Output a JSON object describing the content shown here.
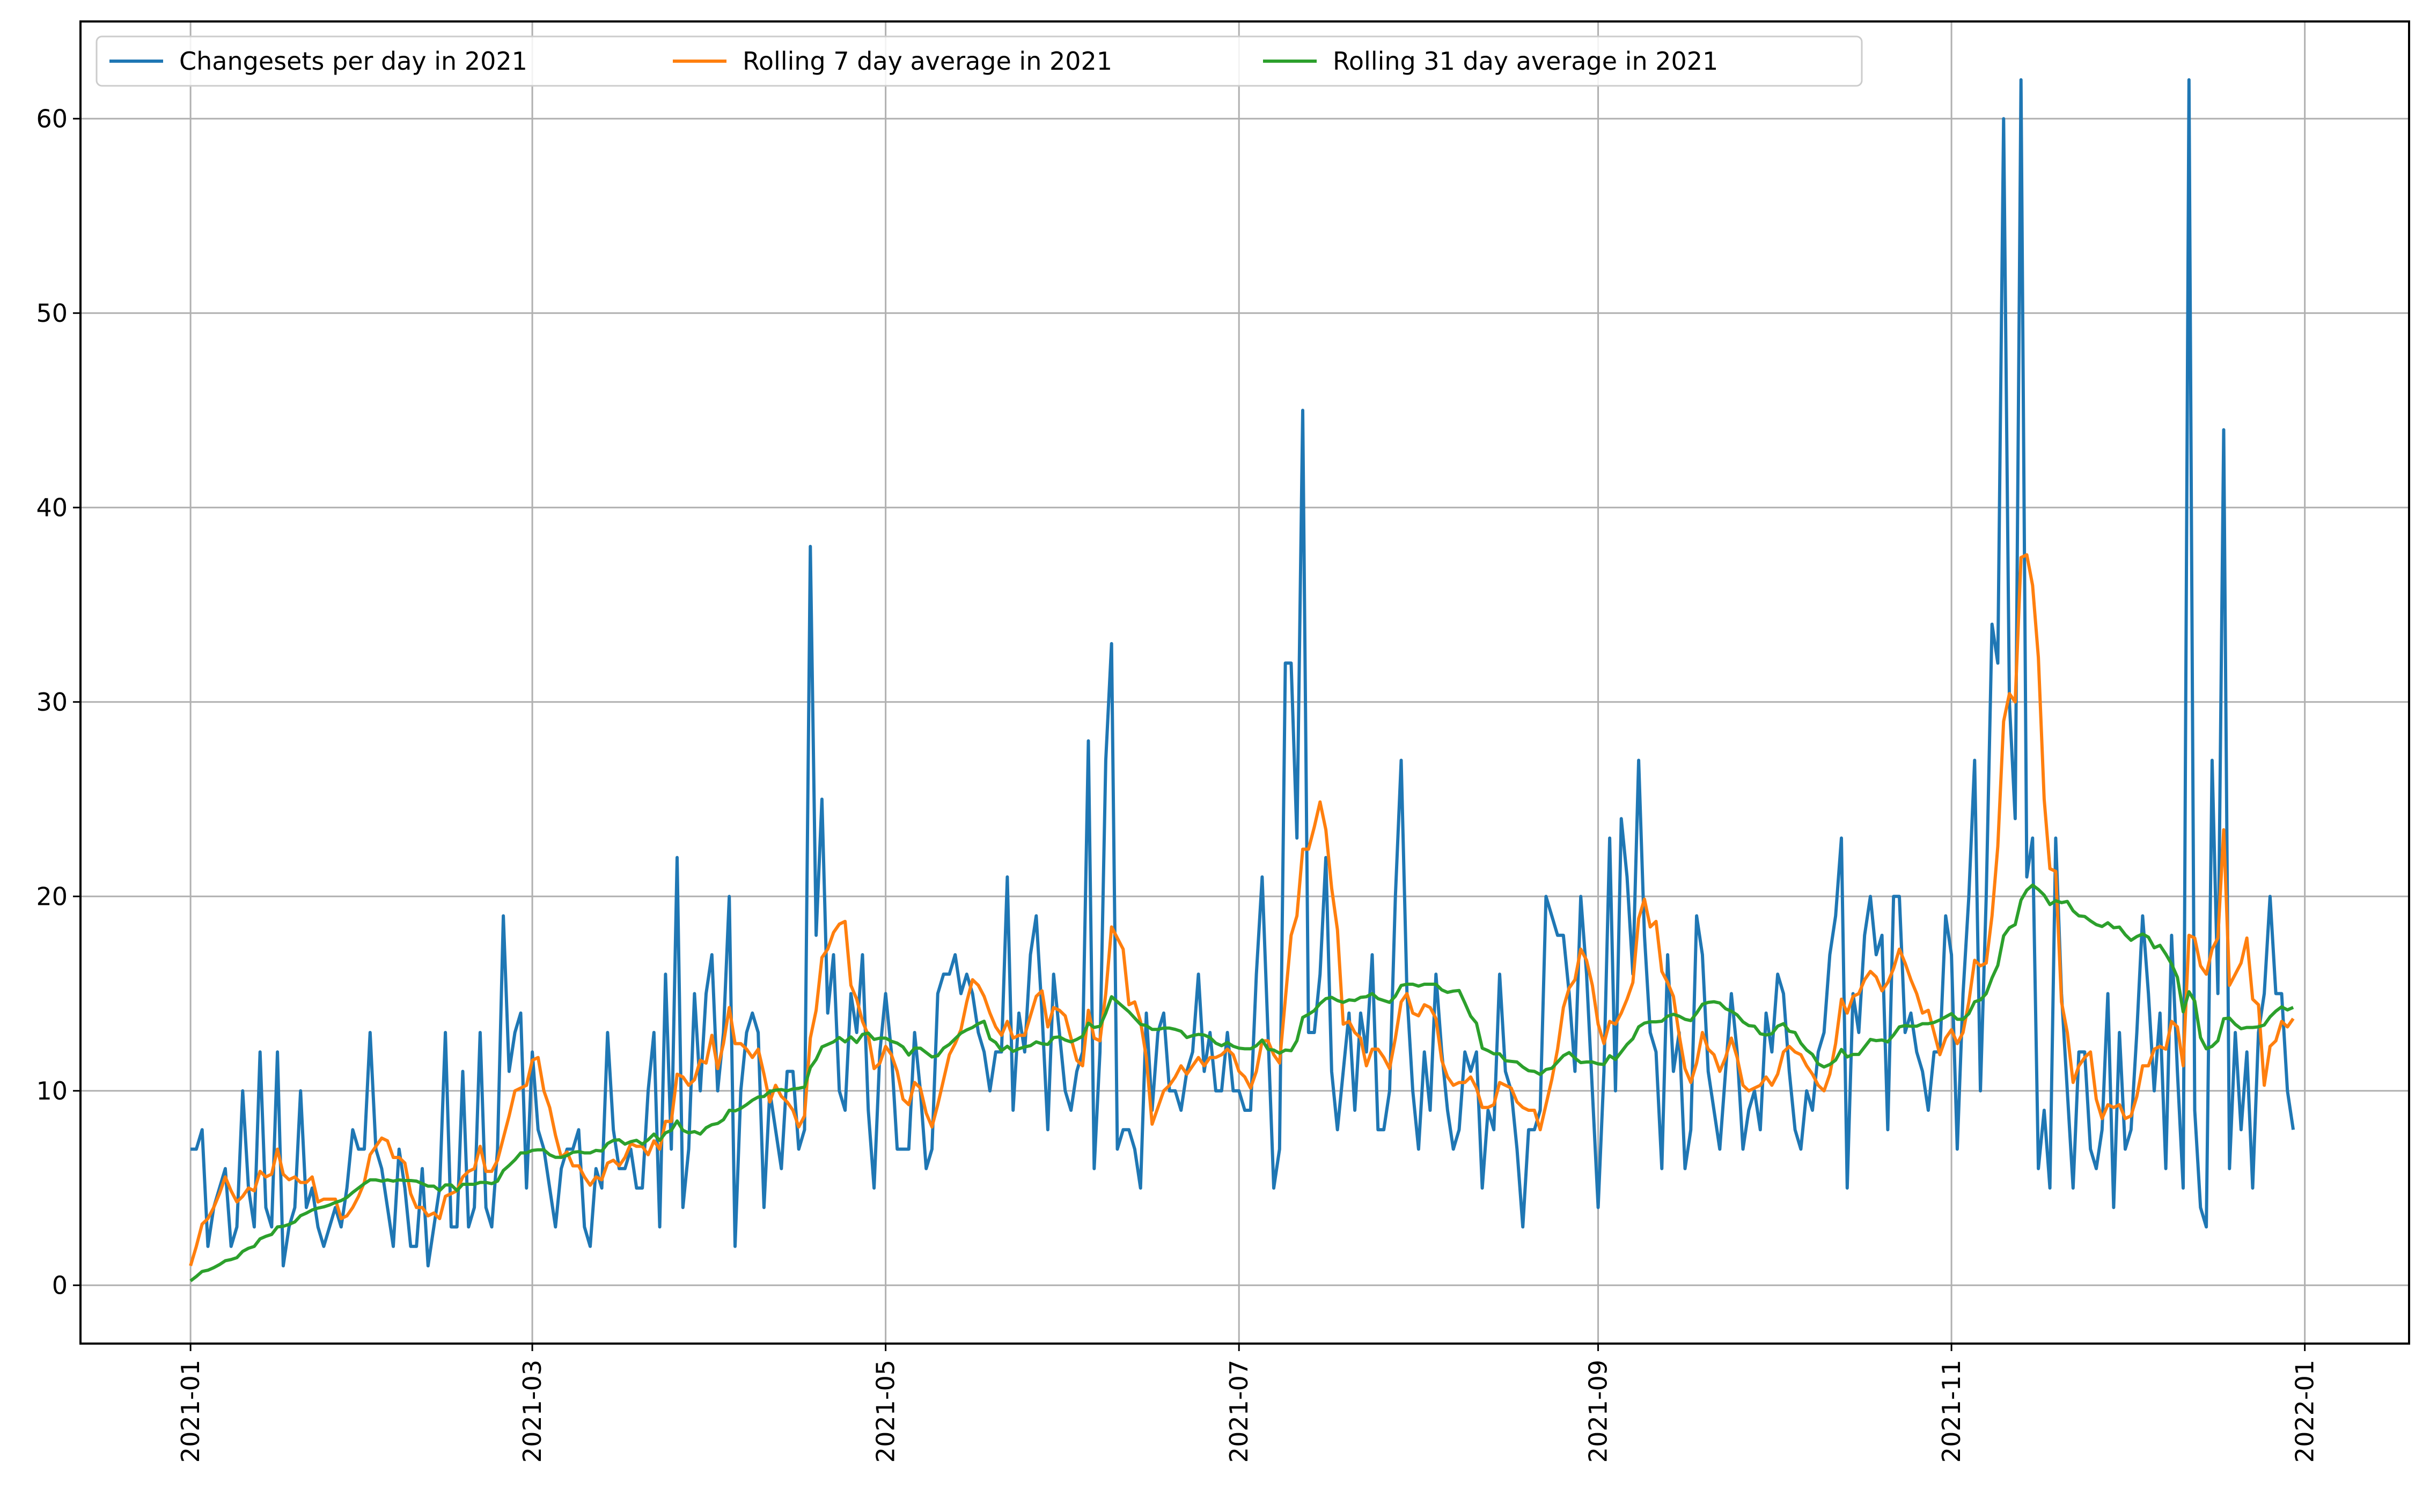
{
  "chart_data": {
    "type": "line",
    "title": "",
    "xlabel": "",
    "ylabel": "",
    "x_start": "2021-01-01",
    "x_end": "2021-12-31",
    "xlim": [
      "2020-12-13",
      "2022-01-19"
    ],
    "ylim": [
      -3,
      65
    ],
    "x_ticks": [
      "2021-01",
      "2021-03",
      "2021-05",
      "2021-07",
      "2021-09",
      "2021-11",
      "2022-01"
    ],
    "y_ticks": [
      "0",
      "10",
      "20",
      "30",
      "40",
      "50",
      "60"
    ],
    "grid": true,
    "legend": {
      "placement": "top-left",
      "columns": 3
    },
    "series": [
      {
        "name": "Changesets per day in 2021",
        "color": "#1f77b4"
      },
      {
        "name": "Rolling 7 day average in 2021",
        "color": "#ff7f0e"
      },
      {
        "name": "Rolling 31 day average in 2021",
        "color": "#2ca02c"
      }
    ],
    "daily_values": [
      7,
      7,
      8,
      2,
      4,
      5,
      6,
      2,
      3,
      10,
      5,
      3,
      12,
      4,
      3,
      12,
      1,
      3,
      4,
      10,
      4,
      5,
      3,
      2,
      3,
      4,
      3,
      5,
      8,
      7,
      7,
      13,
      7,
      6,
      4,
      2,
      7,
      5,
      2,
      2,
      6,
      1,
      3,
      5,
      13,
      3,
      3,
      11,
      3,
      4,
      13,
      4,
      3,
      7,
      19,
      11,
      13,
      14,
      5,
      12,
      8,
      7,
      5,
      3,
      6,
      7,
      7,
      8,
      3,
      2,
      6,
      5,
      13,
      8,
      6,
      6,
      7,
      5,
      5,
      10,
      13,
      3,
      16,
      7,
      22,
      4,
      7,
      15,
      10,
      15,
      17,
      10,
      13,
      20,
      2,
      10,
      13,
      14,
      13,
      4,
      10,
      8,
      6,
      11,
      11,
      7,
      8,
      38,
      18,
      25,
      14,
      17,
      10,
      9,
      15,
      13,
      17,
      9,
      5,
      12,
      15,
      12,
      7,
      7,
      7,
      13,
      10,
      6,
      7,
      15,
      16,
      16,
      17,
      15,
      16,
      15,
      13,
      12,
      10,
      12,
      12,
      21,
      9,
      14,
      12,
      17,
      19,
      14,
      8,
      16,
      13,
      10,
      9,
      11,
      12,
      28,
      6,
      12,
      27,
      33,
      7,
      8,
      8,
      7,
      5,
      14,
      9,
      13,
      14,
      10,
      10,
      9,
      11,
      12,
      16,
      11,
      13,
      10,
      10,
      13,
      10,
      10,
      9,
      9,
      16,
      21,
      13,
      5,
      7,
      32,
      32,
      23,
      45,
      13,
      13,
      16,
      22,
      11,
      8,
      11,
      14,
      9,
      14,
      12,
      17,
      8,
      8,
      10,
      20,
      27,
      15,
      10,
      7,
      12,
      9,
      16,
      12,
      9,
      7,
      8,
      12,
      11,
      12,
      5,
      9,
      8,
      16,
      11,
      10,
      7,
      3,
      8,
      8,
      9,
      20,
      19,
      18,
      18,
      15,
      11,
      20,
      16,
      10,
      4,
      11,
      23,
      10,
      24,
      21,
      16,
      27,
      18,
      13,
      12,
      6,
      17,
      11,
      13,
      6,
      8,
      19,
      17,
      11,
      9,
      7,
      11,
      15,
      12,
      7,
      9,
      10,
      8,
      14,
      12,
      16,
      15,
      11,
      8,
      7,
      10,
      9,
      12,
      13,
      17,
      19,
      23,
      5,
      15,
      13,
      18,
      20,
      17,
      18,
      8,
      20,
      20,
      13,
      14,
      12,
      11,
      9,
      12,
      12,
      19,
      17,
      7,
      15,
      20,
      27,
      10,
      20,
      34,
      32,
      60,
      30,
      24,
      62,
      21,
      23,
      6,
      9,
      5,
      23,
      15,
      10,
      5,
      12,
      12,
      7,
      6,
      8,
      15,
      4,
      13,
      7,
      8,
      13,
      19,
      15,
      10,
      14,
      6,
      18,
      11,
      5,
      62,
      9,
      4,
      3,
      27,
      15,
      44,
      6,
      13,
      8,
      12,
      5,
      13,
      15,
      20,
      15,
      15,
      10,
      8
    ]
  }
}
